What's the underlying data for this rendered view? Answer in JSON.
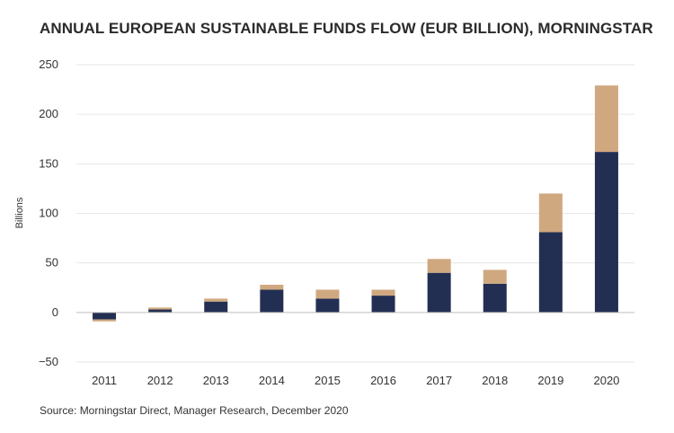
{
  "chart_data": {
    "type": "bar",
    "stacked": true,
    "title": "ANNUAL EUROPEAN SUSTAINABLE FUNDS FLOW (EUR BILLION), MORNINGSTAR",
    "ylabel": "Billions",
    "xlabel": "",
    "categories": [
      "2011",
      "2012",
      "2013",
      "2014",
      "2015",
      "2016",
      "2017",
      "2018",
      "2019",
      "2020"
    ],
    "ylim": [
      -50,
      250
    ],
    "yticks": [
      -50,
      0,
      50,
      100,
      150,
      200,
      250
    ],
    "ytick_labels": [
      "−50",
      "0",
      "50",
      "100",
      "150",
      "200",
      "250"
    ],
    "grid": true,
    "legend": "none",
    "series": [
      {
        "values": [
          -7,
          3,
          11,
          23,
          14,
          17,
          40,
          29,
          81,
          162
        ],
        "color": "#232f52"
      },
      {
        "values": [
          -2,
          2,
          3,
          5,
          9,
          6,
          14,
          14,
          39,
          67
        ],
        "color": "#d0a880"
      }
    ]
  },
  "source_note": "Source: Morningstar Direct, Manager Research, December 2020"
}
